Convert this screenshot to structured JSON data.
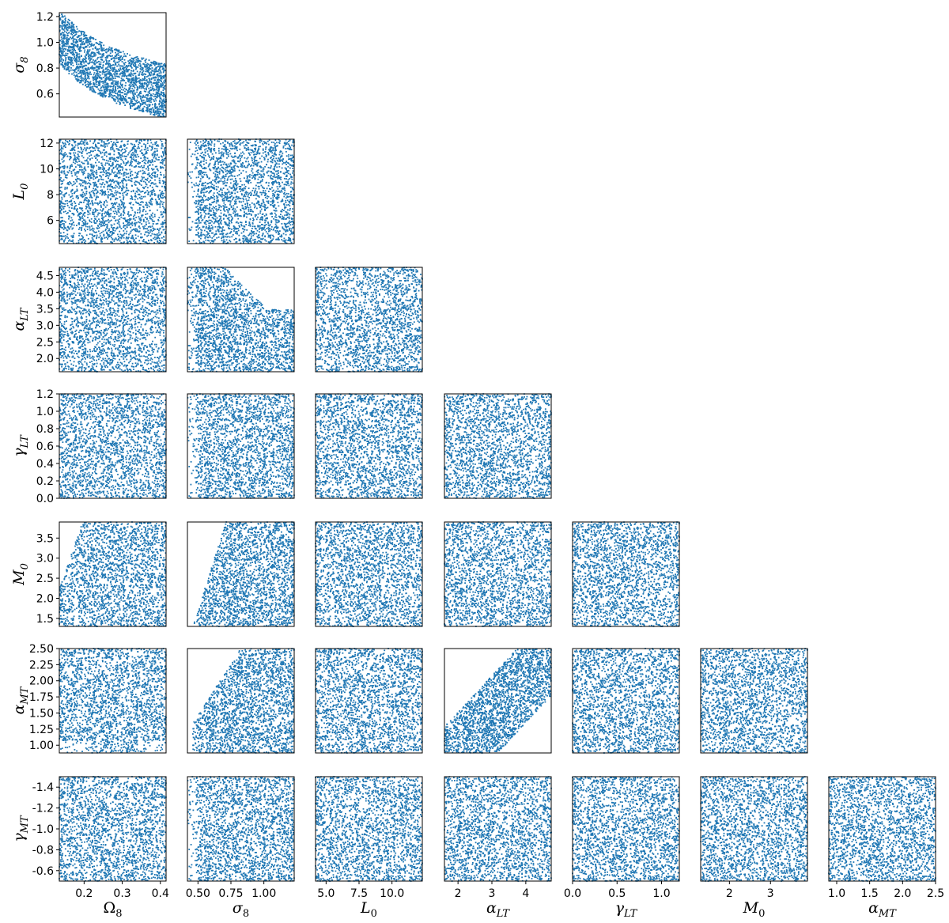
{
  "chart_data": {
    "type": "scatter",
    "layout": "corner-plot",
    "color": "#1f77b4",
    "grid": false,
    "parameters": [
      {
        "key": "omega8",
        "label": "Ω",
        "sub": "8",
        "range": [
          0.135,
          0.415
        ],
        "ticks": [
          0.2,
          0.3,
          0.4
        ],
        "tick_labels": [
          "0.2",
          "0.3",
          "0.4"
        ]
      },
      {
        "key": "sigma8",
        "label": "σ",
        "sub": "8",
        "range": [
          0.42,
          1.23
        ],
        "ticks": [
          0.5,
          0.75,
          1.0
        ],
        "tick_labels": [
          "0.50",
          "0.75",
          "1.00"
        ],
        "ticks_y": [
          0.6,
          0.8,
          1.0,
          1.2
        ],
        "tick_labels_y": [
          "0.6",
          "0.8",
          "1.0",
          "1.2"
        ]
      },
      {
        "key": "L0",
        "label": "L",
        "sub": "0",
        "range": [
          4.2,
          12.3
        ],
        "ticks": [
          5.0,
          7.5,
          10.0
        ],
        "tick_labels": [
          "5.0",
          "7.5",
          "10.0"
        ],
        "ticks_y": [
          6,
          8,
          10,
          12
        ],
        "tick_labels_y": [
          "6",
          "8",
          "10",
          "12"
        ]
      },
      {
        "key": "alphaLT",
        "label": "α",
        "sub": "LT",
        "range": [
          1.6,
          4.75
        ],
        "ticks": [
          2,
          3,
          4
        ],
        "tick_labels": [
          "2",
          "3",
          "4"
        ],
        "ticks_y": [
          2.0,
          2.5,
          3.0,
          3.5,
          4.0,
          4.5
        ],
        "tick_labels_y": [
          "2.0",
          "2.5",
          "3.0",
          "3.5",
          "4.0",
          "4.5"
        ]
      },
      {
        "key": "gammaLT",
        "label": "γ",
        "sub": "LT",
        "range": [
          0.0,
          1.2
        ],
        "ticks": [
          0.0,
          0.5,
          1.0
        ],
        "tick_labels": [
          "0.0",
          "0.5",
          "1.0"
        ],
        "ticks_y": [
          0.0,
          0.2,
          0.4,
          0.6,
          0.8,
          1.0,
          1.2
        ],
        "tick_labels_y": [
          "0.0",
          "0.2",
          "0.4",
          "0.6",
          "0.8",
          "1.0",
          "1.2"
        ]
      },
      {
        "key": "M0",
        "label": "M",
        "sub": "0",
        "range": [
          1.3,
          3.9
        ],
        "ticks": [
          2,
          3
        ],
        "tick_labels": [
          "2",
          "3"
        ],
        "ticks_y": [
          1.5,
          2.0,
          2.5,
          3.0,
          3.5
        ],
        "tick_labels_y": [
          "1.5",
          "2.0",
          "2.5",
          "3.0",
          "3.5"
        ]
      },
      {
        "key": "alphaMT",
        "label": "α",
        "sub": "MT",
        "range": [
          0.88,
          2.5
        ],
        "ticks": [
          1.0,
          1.5,
          2.0,
          2.5
        ],
        "tick_labels": [
          "1.0",
          "1.5",
          "2.0",
          "2.5"
        ],
        "ticks_y": [
          1.0,
          1.25,
          1.5,
          1.75,
          2.0,
          2.25,
          2.5
        ],
        "tick_labels_y": [
          "1.00",
          "1.25",
          "1.50",
          "1.75",
          "2.00",
          "2.25",
          "2.50"
        ]
      },
      {
        "key": "gammaMT",
        "label": "γ",
        "sub": "MT",
        "range": [
          -1.5,
          -0.5
        ],
        "inverted": true,
        "ticks_y": [
          -1.4,
          -1.2,
          -1.0,
          -0.8,
          -0.6
        ],
        "tick_labels_y": [
          "-1.4",
          "-1.2",
          "-1.0",
          "-0.8",
          "-0.6"
        ]
      }
    ],
    "panels": [
      {
        "x": "omega8",
        "y": "sigma8",
        "relation": "anti-correlated banana (σ8 ∝ Ω8^-0.5)"
      },
      {
        "x": "omega8",
        "y": "L0",
        "relation": "weak"
      },
      {
        "x": "sigma8",
        "y": "L0",
        "relation": "weak"
      },
      {
        "x": "omega8",
        "y": "alphaLT",
        "relation": "weak"
      },
      {
        "x": "sigma8",
        "y": "alphaLT",
        "relation": "upper-right region empty"
      },
      {
        "x": "L0",
        "y": "alphaLT",
        "relation": "uniform"
      },
      {
        "x": "omega8",
        "y": "gammaLT",
        "relation": "uniform"
      },
      {
        "x": "sigma8",
        "y": "gammaLT",
        "relation": "left edge sparse"
      },
      {
        "x": "L0",
        "y": "gammaLT",
        "relation": "uniform"
      },
      {
        "x": "alphaLT",
        "y": "gammaLT",
        "relation": "uniform"
      },
      {
        "x": "omega8",
        "y": "M0",
        "relation": "upper-left region empty"
      },
      {
        "x": "sigma8",
        "y": "M0",
        "relation": "strong positive lower bound"
      },
      {
        "x": "L0",
        "y": "M0",
        "relation": "uniform"
      },
      {
        "x": "alphaLT",
        "y": "M0",
        "relation": "uniform"
      },
      {
        "x": "gammaLT",
        "y": "M0",
        "relation": "uniform"
      },
      {
        "x": "omega8",
        "y": "alphaMT",
        "relation": "lower-left and lower-right sparse"
      },
      {
        "x": "sigma8",
        "y": "alphaMT",
        "relation": "upper-left region empty"
      },
      {
        "x": "L0",
        "y": "alphaMT",
        "relation": "uniform"
      },
      {
        "x": "alphaLT",
        "y": "alphaMT",
        "relation": "diagonal band"
      },
      {
        "x": "gammaLT",
        "y": "alphaMT",
        "relation": "uniform"
      },
      {
        "x": "M0",
        "y": "alphaMT",
        "relation": "uniform"
      },
      {
        "x": "omega8",
        "y": "gammaMT",
        "relation": "uniform"
      },
      {
        "x": "sigma8",
        "y": "gammaMT",
        "relation": "left edge sparse"
      },
      {
        "x": "L0",
        "y": "gammaMT",
        "relation": "uniform"
      },
      {
        "x": "alphaLT",
        "y": "gammaMT",
        "relation": "uniform"
      },
      {
        "x": "gammaLT",
        "y": "gammaMT",
        "relation": "uniform"
      },
      {
        "x": "M0",
        "y": "gammaMT",
        "relation": "uniform"
      },
      {
        "x": "alphaMT",
        "y": "gammaMT",
        "relation": "uniform"
      }
    ]
  }
}
